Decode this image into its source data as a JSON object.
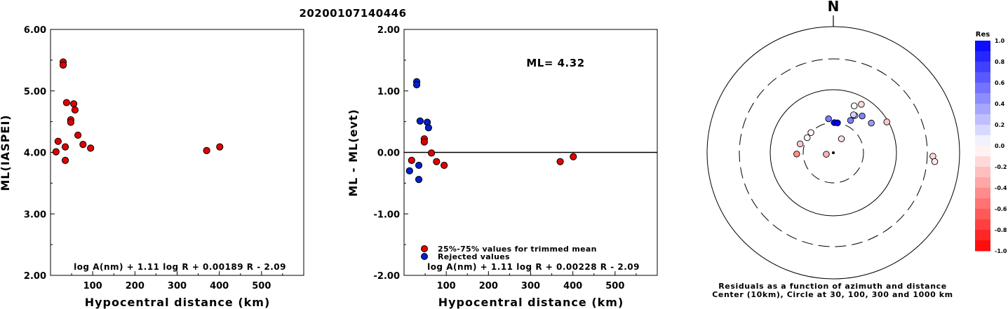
{
  "title": "20200107140446",
  "colors": {
    "red": "#e00000",
    "blue": "#0020d0",
    "axis": "#000000"
  },
  "chart_data": [
    {
      "type": "scatter",
      "xlabel": "Hypocentral distance (km)",
      "ylabel": "ML(IASPEI)",
      "xlim": [
        0,
        600
      ],
      "ylim": [
        2.0,
        6.0
      ],
      "xticks": [
        "100",
        "200",
        "300",
        "400",
        "500"
      ],
      "yticks": [
        "2.00",
        "3.00",
        "4.00",
        "5.00",
        "6.00"
      ],
      "formula": "log A(nm) + 1.11 log R + 0.00189 R - 2.09",
      "series": [
        {
          "color": "red",
          "points": [
            [
              13,
              4.01
            ],
            [
              18,
              4.18
            ],
            [
              30,
              5.47
            ],
            [
              30,
              5.42
            ],
            [
              35,
              4.09
            ],
            [
              35,
              3.87
            ],
            [
              38,
              4.81
            ],
            [
              48,
              4.53
            ],
            [
              48,
              4.49
            ],
            [
              55,
              4.79
            ],
            [
              58,
              4.69
            ],
            [
              65,
              4.28
            ],
            [
              77,
              4.13
            ],
            [
              95,
              4.07
            ],
            [
              370,
              4.03
            ],
            [
              401,
              4.09
            ]
          ]
        }
      ]
    },
    {
      "type": "scatter",
      "xlabel": "Hypocentral distance (km)",
      "ylabel": "ML - ML(evt)",
      "xlim": [
        0,
        600
      ],
      "ylim": [
        -2.0,
        2.0
      ],
      "xticks": [
        "100",
        "200",
        "300",
        "400",
        "500"
      ],
      "yticks": [
        "-2.00",
        "-1.00",
        "0.00",
        "1.00",
        "2.00"
      ],
      "formula": "log A(nm) + 1.11 log R + 0.00228 R - 2.09",
      "ml_label": "ML= 4.32",
      "legend": [
        {
          "color": "red",
          "label": "25%-75% values for trimmed mean"
        },
        {
          "color": "blue",
          "label": "Rejected values"
        }
      ],
      "series": [
        {
          "color": "red",
          "points": [
            [
              18,
              -0.13
            ],
            [
              48,
              0.22
            ],
            [
              48,
              0.17
            ],
            [
              65,
              -0.01
            ],
            [
              77,
              -0.15
            ],
            [
              95,
              -0.21
            ],
            [
              370,
              -0.15
            ],
            [
              401,
              -0.07
            ]
          ]
        },
        {
          "color": "blue",
          "points": [
            [
              13,
              -0.3
            ],
            [
              30,
              1.15
            ],
            [
              30,
              1.1
            ],
            [
              35,
              -0.21
            ],
            [
              35,
              -0.44
            ],
            [
              38,
              0.51
            ],
            [
              55,
              0.49
            ],
            [
              58,
              0.4
            ]
          ]
        }
      ]
    },
    {
      "type": "polar-scatter",
      "north_label": "N",
      "caption_line1": "Residuals as a function of azimuth and distance",
      "caption_line2": "Center (10km), Circle at 30, 100, 300 and 1000 km",
      "colorbar": {
        "title": "Res",
        "ticks": [
          "1.0",
          "0.8",
          "0.6",
          "0.4",
          "0.2",
          "0.0",
          "-0.2",
          "-0.4",
          "-0.6",
          "-0.8",
          "-1.0"
        ]
      },
      "rings_km": [
        30,
        100,
        300,
        1000
      ],
      "center_km": 10,
      "stations": [
        {
          "az": 30,
          "dist": 18,
          "res": -0.13
        },
        {
          "az": 30,
          "dist": 48,
          "res": 0.22
        },
        {
          "az": 28,
          "dist": 48,
          "res": 0.17
        },
        {
          "az": 24,
          "dist": 65,
          "res": -0.01
        },
        {
          "az": 30,
          "dist": 77,
          "res": -0.15
        },
        {
          "az": 60,
          "dist": 95,
          "res": -0.21
        },
        {
          "az": 92,
          "dist": 370,
          "res": -0.15
        },
        {
          "az": 95,
          "dist": 401,
          "res": -0.07
        },
        {
          "az": 258,
          "dist": 13,
          "res": -0.3
        },
        {
          "az": 300,
          "dist": 30,
          "res": 0.01
        },
        {
          "az": 312,
          "dist": 30,
          "res": -0.05
        },
        {
          "az": 285,
          "dist": 35,
          "res": -0.21
        },
        {
          "az": 268,
          "dist": 38,
          "res": -0.44
        },
        {
          "az": 2,
          "dist": 30,
          "res": 1.15
        },
        {
          "az": 8,
          "dist": 30,
          "res": 1.1
        },
        {
          "az": 352,
          "dist": 35,
          "res": 0.51
        },
        {
          "az": 28,
          "dist": 38,
          "res": 0.51
        },
        {
          "az": 38,
          "dist": 55,
          "res": 0.49
        },
        {
          "az": 52,
          "dist": 58,
          "res": 0.4
        }
      ]
    }
  ]
}
